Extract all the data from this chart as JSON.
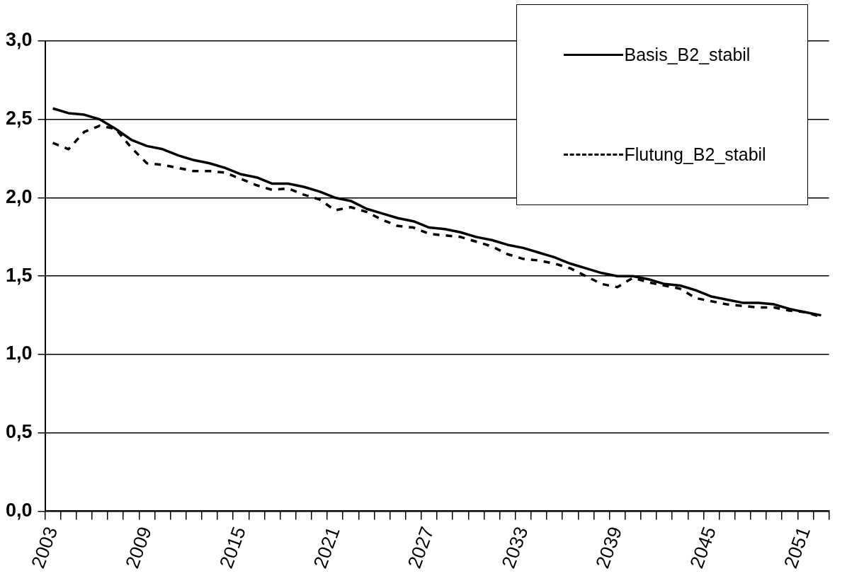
{
  "chart_data": {
    "type": "line",
    "categories": [
      "2003",
      null,
      null,
      null,
      null,
      null,
      "2009",
      null,
      null,
      null,
      null,
      null,
      "2015",
      null,
      null,
      null,
      null,
      null,
      "2021",
      null,
      null,
      null,
      null,
      null,
      "2027",
      null,
      null,
      null,
      null,
      null,
      "2033",
      null,
      null,
      null,
      null,
      null,
      "2039",
      null,
      null,
      null,
      null,
      null,
      "2045",
      null,
      null,
      null,
      null,
      null,
      "2051",
      null
    ],
    "series": [
      {
        "name": "Basis_B2_stabil",
        "color": "#000000",
        "line_style": "solid",
        "values": [
          2.57,
          2.54,
          2.53,
          2.5,
          2.44,
          2.37,
          2.33,
          2.31,
          2.27,
          2.24,
          2.22,
          2.19,
          2.15,
          2.13,
          2.09,
          2.09,
          2.07,
          2.04,
          2.0,
          1.98,
          1.93,
          1.9,
          1.87,
          1.85,
          1.81,
          1.8,
          1.78,
          1.75,
          1.73,
          1.7,
          1.68,
          1.65,
          1.62,
          1.58,
          1.55,
          1.52,
          1.5,
          1.5,
          1.48,
          1.45,
          1.44,
          1.41,
          1.37,
          1.35,
          1.33,
          1.33,
          1.32,
          1.29,
          1.27,
          1.25
        ]
      },
      {
        "name": "Flutung_B2_stabil",
        "color": "#000000",
        "line_style": "dashed",
        "values": [
          2.35,
          2.31,
          2.42,
          2.46,
          2.44,
          2.32,
          2.22,
          2.21,
          2.19,
          2.17,
          2.17,
          2.16,
          2.12,
          2.08,
          2.05,
          2.06,
          2.02,
          1.99,
          1.92,
          1.94,
          1.91,
          1.86,
          1.82,
          1.81,
          1.77,
          1.76,
          1.75,
          1.72,
          1.69,
          1.64,
          1.61,
          1.6,
          1.58,
          1.55,
          1.5,
          1.45,
          1.43,
          1.49,
          1.46,
          1.44,
          1.42,
          1.36,
          1.34,
          1.32,
          1.31,
          1.3,
          1.3,
          1.28,
          1.27,
          1.24
        ]
      }
    ],
    "ylim": [
      0,
      3
    ],
    "yticks": [
      {
        "value": 0,
        "label": "0,0"
      },
      {
        "value": 0.5,
        "label": "0,5"
      },
      {
        "value": 1,
        "label": "1,0"
      },
      {
        "value": 1.5,
        "label": "1,5"
      },
      {
        "value": 2,
        "label": "2,0"
      },
      {
        "value": 2.5,
        "label": "2,5"
      },
      {
        "value": 3,
        "label": "3,0"
      }
    ],
    "grid": "y",
    "legend": "top right",
    "marker": "none"
  }
}
